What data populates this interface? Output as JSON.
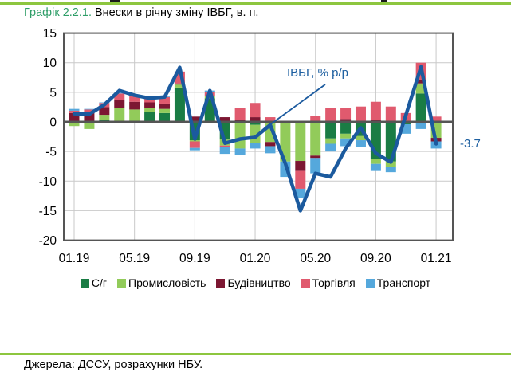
{
  "title": {
    "prefix": "Графік 2.2.1.",
    "text": " Внески в річну зміну ІВБГ, в. п."
  },
  "annotation": {
    "line_label": "ІВБГ, % р/р",
    "last_value_label": "-3.7"
  },
  "source": "Джерела: ДССУ, розрахунки НБУ.",
  "colors": {
    "sg": "#1a7c44",
    "prom": "#92cb5a",
    "bud": "#7c1732",
    "torg": "#e05a6e",
    "trans": "#55a8dc",
    "line": "#1b5a9e",
    "grid": "#c9c9c9",
    "axis": "#555555",
    "accent_green_rule": "#8dc63f",
    "title_green": "#2f9e68",
    "annotation_blue": "#1d5fa0"
  },
  "chart_data": {
    "type": "bar",
    "subtype": "stacked-bars-with-line",
    "categories": [
      "01.19",
      "02.19",
      "03.19",
      "04.19",
      "05.19",
      "06.19",
      "07.19",
      "08.19",
      "09.19",
      "10.19",
      "11.19",
      "12.19",
      "01.20",
      "02.20",
      "03.20",
      "04.20",
      "05.20",
      "06.20",
      "07.20",
      "08.20",
      "09.20",
      "10.20",
      "11.20",
      "12.20",
      "01.21"
    ],
    "x_tick_labels": [
      "01.19",
      "05.19",
      "09.19",
      "01.20",
      "05.20",
      "09.20",
      "01.21"
    ],
    "y_tick_labels": [
      "15",
      "10",
      "5",
      "0",
      "-5",
      "-10",
      "-15",
      "-20"
    ],
    "ylim": [
      -20,
      15
    ],
    "ytick_step": 5,
    "grid": true,
    "legend_position": "bottom",
    "series": [
      {
        "name": "С/г",
        "kind": "bar",
        "color": "#1a7c44",
        "values": [
          0.1,
          0.1,
          0.3,
          0.1,
          0.1,
          1.7,
          1.5,
          5.8,
          -3.1,
          4.0,
          -3.0,
          -0.2,
          -0.5,
          0.0,
          0.0,
          0.0,
          0.0,
          -2.8,
          -2.0,
          -2.4,
          -6.3,
          -6.7,
          -0.4,
          4.8,
          0.0
        ]
      },
      {
        "name": "Промисловість",
        "kind": "bar",
        "color": "#92cb5a",
        "values": [
          -0.7,
          -1.2,
          0.9,
          2.3,
          2.0,
          0.6,
          0.7,
          0.5,
          -0.2,
          0.3,
          -1.0,
          -4.3,
          -3.0,
          -3.4,
          -6.7,
          -6.6,
          -5.7,
          -0.9,
          -0.8,
          -0.7,
          -0.8,
          -0.9,
          0.0,
          1.7,
          -2.7
        ]
      },
      {
        "name": "Будівництво",
        "kind": "bar",
        "color": "#7c1732",
        "values": [
          1.4,
          1.5,
          1.3,
          1.3,
          1.3,
          1.0,
          0.9,
          0.2,
          0.9,
          0.0,
          0.8,
          0.3,
          0.8,
          -0.7,
          0.0,
          -1.7,
          -0.4,
          0.0,
          0.5,
          0.2,
          0.4,
          0.1,
          0.2,
          0.6,
          -0.6
        ]
      },
      {
        "name": "Торгівля",
        "kind": "bar",
        "color": "#e05a6e",
        "values": [
          0.4,
          0.5,
          0.7,
          1.1,
          1.1,
          1.0,
          1.1,
          2.0,
          -1.1,
          0.8,
          -0.3,
          2.0,
          2.4,
          0.8,
          0.0,
          -3.0,
          1.0,
          2.3,
          1.9,
          2.4,
          3.0,
          2.5,
          1.3,
          2.9,
          0.9
        ]
      },
      {
        "name": "Транспорт",
        "kind": "bar",
        "color": "#55a8dc",
        "values": [
          0.3,
          0.1,
          0.1,
          0.1,
          0.1,
          0.1,
          0.1,
          0.0,
          -0.4,
          0.2,
          -1.1,
          -1.1,
          -1.0,
          -1.2,
          -2.6,
          -1.6,
          -2.6,
          -1.3,
          -1.3,
          -1.2,
          -1.2,
          -0.9,
          -1.6,
          -1.2,
          -1.2
        ]
      },
      {
        "name": "ІВБГ, % р/р",
        "kind": "line",
        "color": "#1b5a9e",
        "values": [
          1.4,
          1.3,
          2.9,
          5.3,
          4.5,
          4.0,
          4.2,
          9.2,
          -2.9,
          5.3,
          -3.6,
          -2.9,
          -2.6,
          -0.5,
          -7.0,
          -15.0,
          -8.7,
          -9.3,
          -4.5,
          -1.0,
          -5.3,
          -6.8,
          1.2,
          9.3,
          -3.7
        ]
      }
    ]
  }
}
